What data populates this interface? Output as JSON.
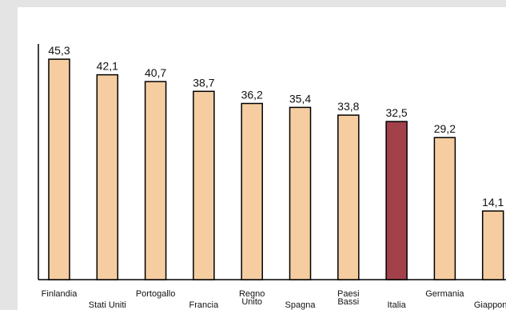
{
  "chart_data": {
    "type": "bar",
    "categories": [
      "Finlandia",
      "Stati Uniti",
      "Portogallo",
      "Francia",
      "Regno Unito",
      "Spagna",
      "Paesi Bassi",
      "Italia",
      "Germania",
      "Giappone"
    ],
    "values": [
      45.3,
      42.1,
      40.7,
      38.7,
      36.2,
      35.4,
      33.8,
      32.5,
      29.2,
      14.1
    ],
    "value_labels": [
      "45,3",
      "42,1",
      "40,7",
      "38,7",
      "36,2",
      "35,4",
      "33,8",
      "32,5",
      "29,2",
      "14,1"
    ],
    "ylim": [
      0,
      50
    ],
    "grid": false,
    "legend": "none",
    "highlight_category": "Italia",
    "colors": {
      "bar": "#f6cda0",
      "highlight": "#a3414b",
      "outline": "#000000",
      "background_strip": "#e4e4e4"
    }
  }
}
